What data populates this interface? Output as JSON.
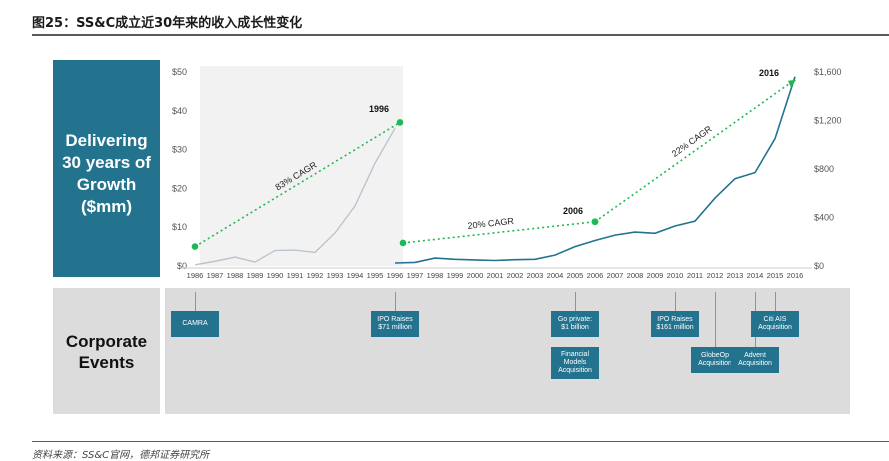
{
  "figure_title": "图25：SS&C成立近30年来的收入成长性变化",
  "source": "资料来源：SS&C官网，德邦证券研究所",
  "side_panels": {
    "growth": "Delivering\n30 years of\nGrowth\n($mm)",
    "events": "Corporate\nEvents"
  },
  "colors": {
    "brand_blue": "#23738f",
    "cagr_green": "#1db954",
    "shade": "#f2f2f2",
    "event_line": "#e07b39",
    "early_line": "#b8c2cc"
  },
  "chart_data": {
    "type": "line",
    "years": [
      "1986",
      "1987",
      "1988",
      "1989",
      "1990",
      "1991",
      "1992",
      "1993",
      "1994",
      "1995",
      "1996",
      "1997",
      "1998",
      "1999",
      "2000",
      "2001",
      "2002",
      "2003",
      "2004",
      "2005",
      "2006",
      "2007",
      "2008",
      "2009",
      "2010",
      "2011",
      "2012",
      "2013",
      "2014",
      "2015",
      "2016"
    ],
    "left_axis": {
      "ticks": [
        "$0",
        "$10",
        "$20",
        "$30",
        "$40",
        "$50"
      ],
      "min": 0,
      "max": 50
    },
    "right_axis": {
      "ticks": [
        "$0",
        "$400",
        "$800",
        "$1,200",
        "$1,600"
      ],
      "min": 0,
      "max": 1600
    },
    "series": [
      {
        "axis": "left",
        "x": [
          "1986",
          "1987",
          "1988",
          "1989",
          "1990",
          "1991",
          "1992",
          "1993",
          "1994",
          "1995",
          "1996"
        ],
        "values": [
          0.3,
          1.2,
          2.3,
          1.0,
          4.0,
          4.1,
          3.5,
          8.5,
          15.5,
          26.5,
          35.5
        ]
      },
      {
        "axis": "right",
        "x": [
          "1996",
          "1997",
          "1998",
          "1999",
          "2000",
          "2001",
          "2002",
          "2003",
          "2004",
          "2005",
          "2006",
          "2007",
          "2008",
          "2009",
          "2010",
          "2011",
          "2012",
          "2013",
          "2014",
          "2015",
          "2016"
        ],
        "values": [
          25,
          30,
          65,
          55,
          50,
          45,
          52,
          55,
          90,
          160,
          210,
          255,
          280,
          270,
          330,
          370,
          560,
          720,
          770,
          1050,
          1560
        ]
      }
    ],
    "cagr_lines": [
      {
        "label": "83% CAGR",
        "axis": "left",
        "from": [
          "1986",
          5
        ],
        "to": [
          "1996",
          37
        ]
      },
      {
        "label": "20% CAGR",
        "axis": "right",
        "from": [
          "1996",
          190
        ],
        "to": [
          "2006",
          365
        ]
      },
      {
        "label": "22% CAGR",
        "axis": "right",
        "from": [
          "2006",
          365
        ],
        "to": [
          "2016",
          1520
        ]
      }
    ],
    "year_markers": [
      "1996",
      "2006",
      "2016"
    ],
    "shaded_span": [
      "1986",
      "1996"
    ]
  },
  "events": [
    {
      "year": "1986",
      "label": "CAMRA",
      "row": 1
    },
    {
      "year": "1996",
      "label": "IPO Raises\n$71 million",
      "row": 1
    },
    {
      "year": "2005",
      "label": "Go private:\n$1 billion",
      "row": 1
    },
    {
      "year": "2005",
      "label": "Financial\nModels\nAcquisition",
      "row": 2
    },
    {
      "year": "2010",
      "label": "IPO Raises\n$161 million",
      "row": 1
    },
    {
      "year": "2012",
      "label": "GlobeOp\nAcquisition",
      "row": 2
    },
    {
      "year": "2014",
      "label": "Advent\nAcquisition",
      "row": 2
    },
    {
      "year": "2015",
      "label": "Citi AIS\nAcquisition",
      "row": 1
    }
  ]
}
